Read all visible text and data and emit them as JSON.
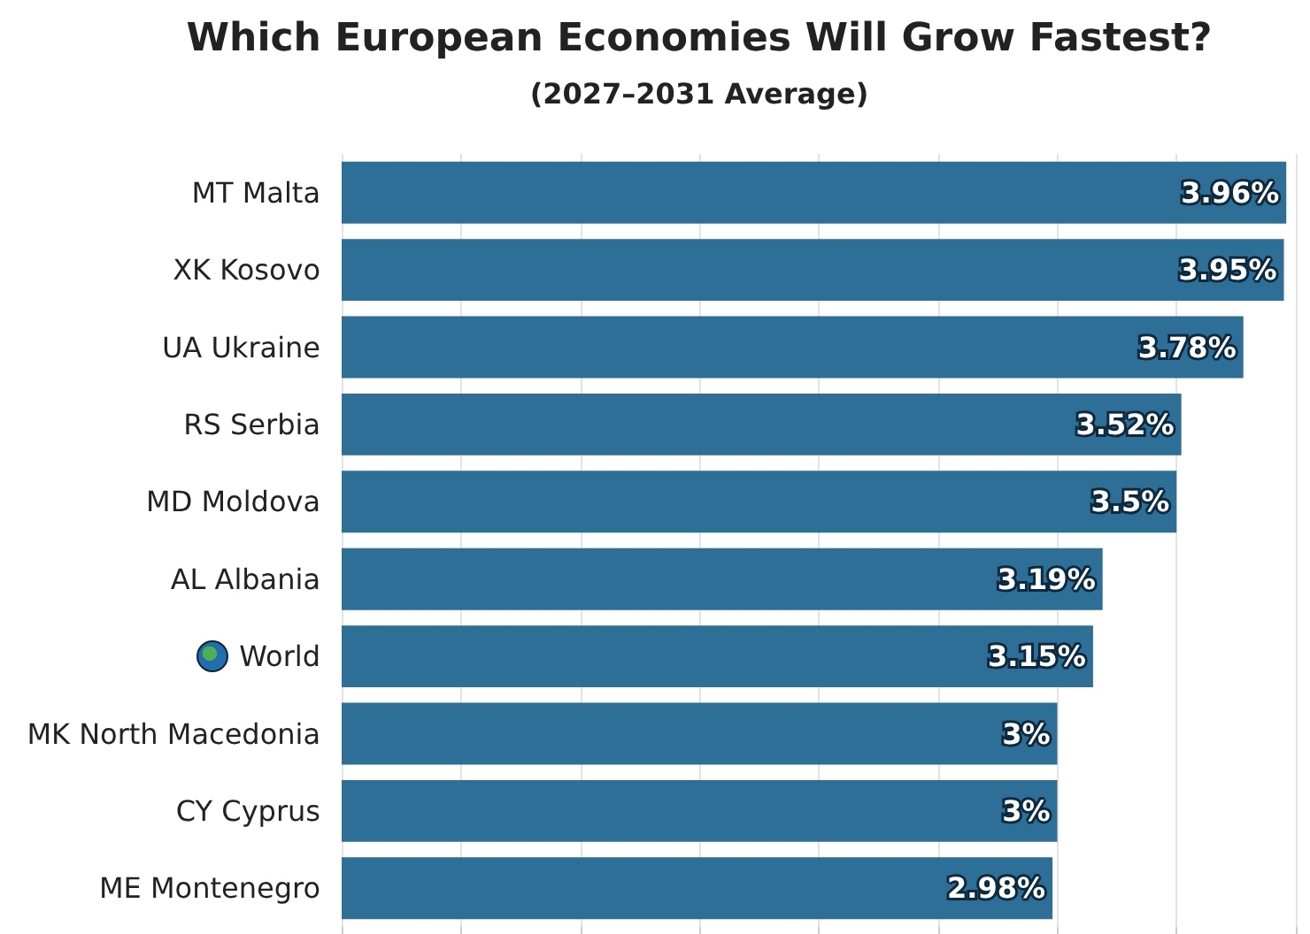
{
  "chart_data": {
    "type": "bar",
    "orientation": "horizontal",
    "title": "Which European Economies Will Grow Fastest?",
    "subtitle": "(2027–2031 Average)",
    "categories": [
      "MT Malta",
      "XK Kosovo",
      "UA Ukraine",
      "RS Serbia",
      "MD Moldova",
      "AL Albania",
      "World",
      "MK North Macedonia",
      "CY Cyprus",
      "ME Montenegro"
    ],
    "values": [
      3.96,
      3.95,
      3.78,
      3.52,
      3.5,
      3.19,
      3.15,
      3,
      3,
      2.98
    ],
    "value_labels": [
      "3.96%",
      "3.95%",
      "3.78%",
      "3.52%",
      "3.5%",
      "3.19%",
      "3.15%",
      "3%",
      "3%",
      "2.98%"
    ],
    "color": "#2e6f97",
    "xlim": [
      0,
      4
    ],
    "xticks": [
      {
        "value": 0,
        "label": null
      },
      {
        "value": 0.5,
        "label": null
      },
      {
        "value": 1,
        "label": null
      },
      {
        "value": 1.5,
        "label": null
      },
      {
        "value": 2,
        "label": null
      },
      {
        "value": 2.5,
        "label": null
      },
      {
        "value": 3,
        "label": null
      },
      {
        "value": 3.5,
        "label": null
      },
      {
        "value": 4,
        "label": null
      }
    ],
    "grid": "x",
    "tick_labels": "y"
  }
}
